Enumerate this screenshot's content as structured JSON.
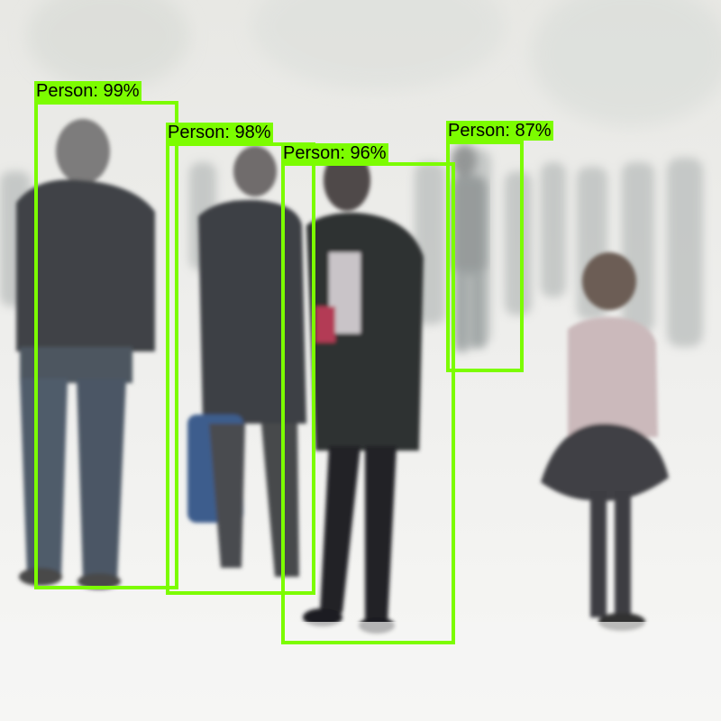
{
  "image": {
    "box_color": "#7cfc00",
    "label_text_color": "#000000"
  },
  "detections": [
    {
      "label": "Person: 99%",
      "class": "Person",
      "score": 0.99
    },
    {
      "label": "Person: 98%",
      "class": "Person",
      "score": 0.98
    },
    {
      "label": "Person: 96%",
      "class": "Person",
      "score": 0.96
    },
    {
      "label": "Person: 87%",
      "class": "Person",
      "score": 0.87
    }
  ]
}
